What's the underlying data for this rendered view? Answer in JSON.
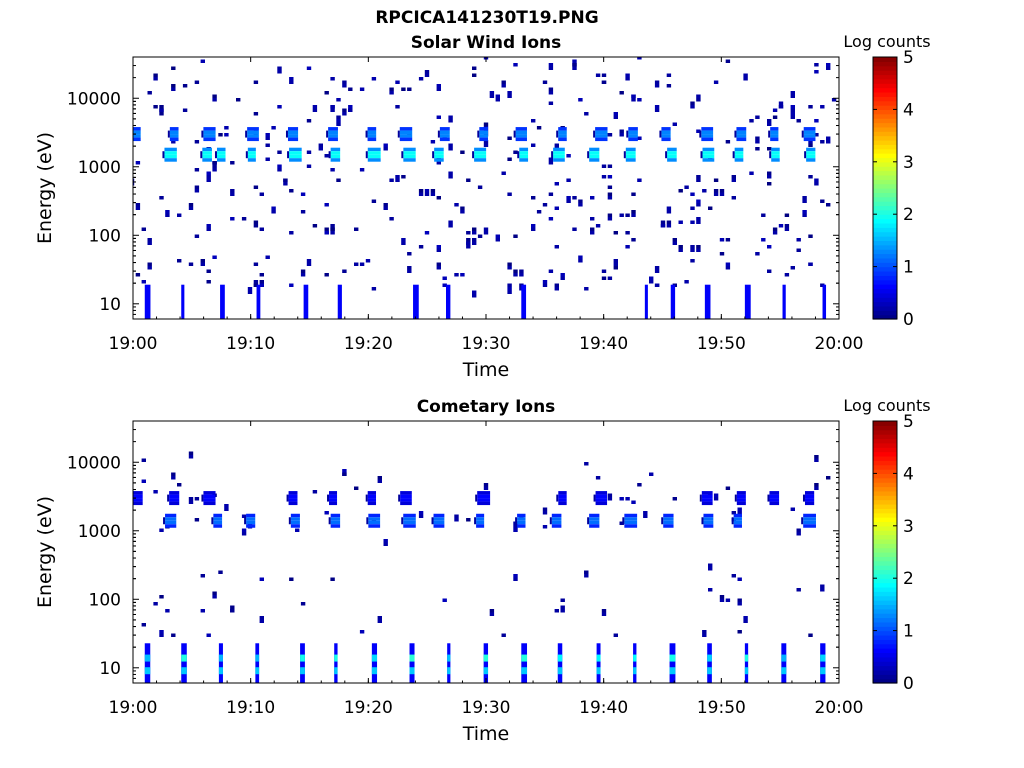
{
  "figure": {
    "title": "RPCICA141230T19.PNG"
  },
  "chart_data": [
    {
      "type": "heatmap",
      "title": "Solar Wind Ions",
      "xlabel": "Time",
      "ylabel": "Energy (eV)",
      "x_ticks": [
        "19:00",
        "19:10",
        "19:20",
        "19:30",
        "19:40",
        "19:50",
        "20:00"
      ],
      "xlim_minutes": [
        0,
        60
      ],
      "y_scale": "log",
      "ylim": [
        6,
        40000
      ],
      "y_ticks": [
        10,
        100,
        1000,
        10000
      ],
      "colorbar": {
        "label": "Log counts",
        "range": [
          0,
          5
        ],
        "ticks": [
          0,
          1,
          2,
          3,
          4,
          5
        ],
        "colormap": "jet"
      },
      "bands": [
        {
          "energy": 1500,
          "level": 1.8,
          "minutes": [
            3.2,
            6.3,
            7.5,
            10.1,
            13.8,
            17.2,
            20.5,
            23.5,
            26.0,
            29.5,
            33.2,
            36.2,
            39.2,
            42.3,
            45.8,
            48.9,
            51.5,
            54.6,
            57.6
          ]
        },
        {
          "energy": 3000,
          "level": 1.2,
          "minutes": [
            0.3,
            3.5,
            6.5,
            10.2,
            13.6,
            17.0,
            20.3,
            23.2,
            26.5,
            29.8,
            33.0,
            36.5,
            39.8,
            42.5,
            45.3,
            48.8,
            51.7,
            54.5,
            57.5
          ]
        },
        {
          "energy": 10,
          "level": 0.9,
          "minutes": [
            1.0,
            4.1,
            7.4,
            10.5,
            14.5,
            17.4,
            23.8,
            26.6,
            33.0,
            43.5,
            45.7,
            48.6,
            52.0,
            55.2,
            58.6
          ]
        }
      ]
    },
    {
      "type": "heatmap",
      "title": "Cometary Ions",
      "xlabel": "Time",
      "ylabel": "Energy (eV)",
      "x_ticks": [
        "19:00",
        "19:10",
        "19:20",
        "19:30",
        "19:40",
        "19:50",
        "20:00"
      ],
      "xlim_minutes": [
        0,
        60
      ],
      "y_scale": "log",
      "ylim": [
        6,
        40000
      ],
      "y_ticks": [
        10,
        100,
        1000,
        10000
      ],
      "colorbar": {
        "label": "Log counts",
        "range": [
          0,
          5
        ],
        "ticks": [
          0,
          1,
          2,
          3,
          4,
          5
        ],
        "colormap": "jet"
      },
      "bands": [
        {
          "energy": 1400,
          "level": 1.1,
          "minutes": [
            3.2,
            7.2,
            10.0,
            13.8,
            17.2,
            20.5,
            23.5,
            26.0,
            29.5,
            33.0,
            36.0,
            39.2,
            42.3,
            45.5,
            48.9,
            51.4,
            57.5
          ]
        },
        {
          "energy": 3000,
          "level": 0.6,
          "minutes": [
            0.3,
            3.5,
            6.5,
            13.6,
            17.0,
            20.3,
            23.2,
            29.8,
            36.5,
            39.8,
            48.8,
            51.7,
            54.5,
            57.5
          ]
        },
        {
          "energy": 12,
          "level": 1.6,
          "minutes": [
            1.0,
            4.1,
            7.3,
            10.4,
            14.2,
            17.1,
            20.3,
            23.5,
            26.7,
            29.8,
            33.0,
            36.1,
            39.4,
            42.5,
            45.6,
            48.8,
            52.0,
            55.1,
            58.4
          ]
        }
      ]
    }
  ]
}
